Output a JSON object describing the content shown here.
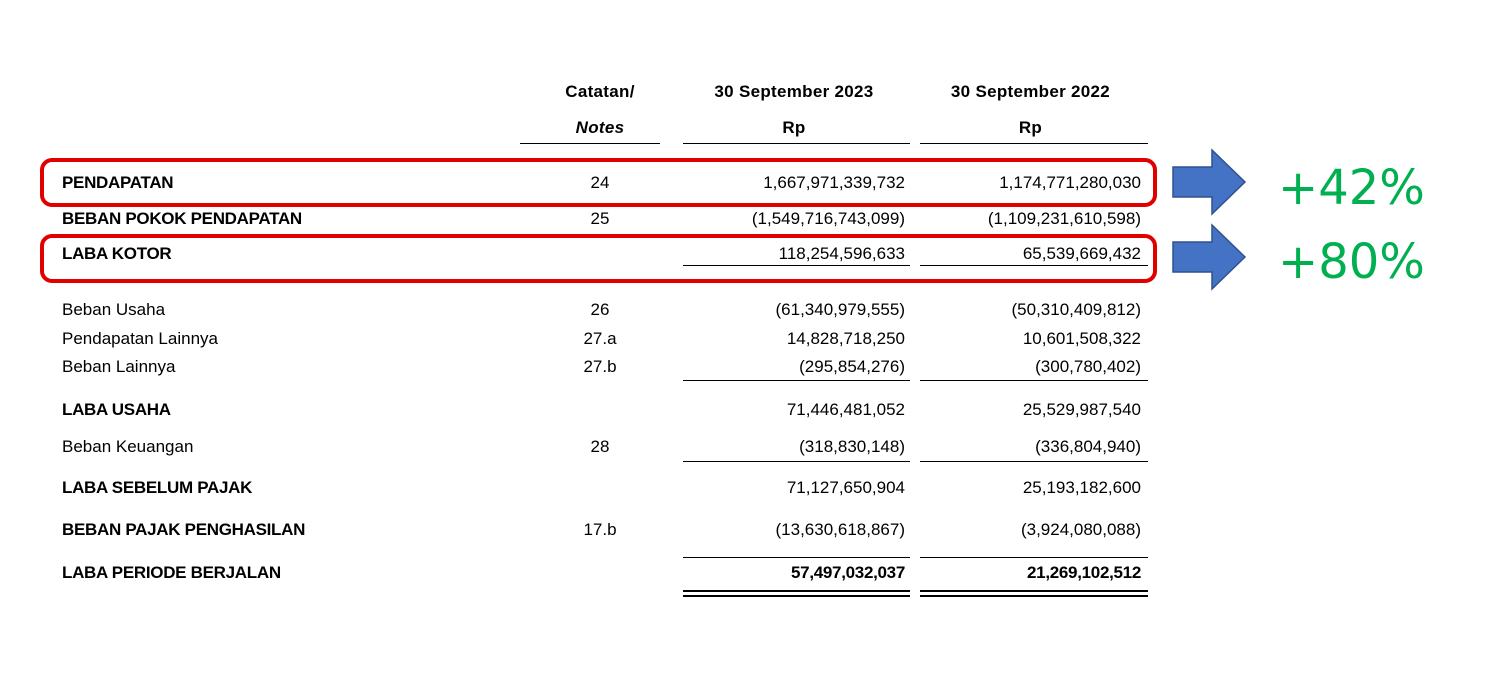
{
  "header": {
    "notes_label": "Catatan/",
    "notes_label_en": "Notes",
    "col_2023": "30 September 2023",
    "col_2022": "30 September 2022",
    "currency_2023": "Rp",
    "currency_2022": "Rp"
  },
  "table": {
    "rows": [
      [
        "PENDAPATAN",
        "24",
        "1,667,971,339,732",
        "1,174,771,280,030"
      ],
      [
        "BEBAN POKOK PENDAPATAN",
        "25",
        "(1,549,716,743,099)",
        "(1,109,231,610,598)"
      ],
      [
        "LABA KOTOR",
        "",
        "118,254,596,633",
        "65,539,669,432"
      ],
      [
        "Beban Usaha",
        "26",
        "(61,340,979,555)",
        "(50,310,409,812)"
      ],
      [
        "Pendapatan Lainnya",
        "27.a",
        "14,828,718,250",
        "10,601,508,322"
      ],
      [
        "Beban Lainnya",
        "27.b",
        "(295,854,276)",
        "(300,780,402)"
      ],
      [
        "LABA USAHA",
        "",
        "71,446,481,052",
        "25,529,987,540"
      ],
      [
        "Beban Keuangan",
        "28",
        "(318,830,148)",
        "(336,804,940)"
      ],
      [
        "LABA SEBELUM PAJAK",
        "",
        "71,127,650,904",
        "25,193,182,600"
      ],
      [
        "BEBAN PAJAK PENGHASILAN",
        "17.b",
        "(13,630,618,867)",
        "(3,924,080,088)"
      ],
      [
        "LABA PERIODE BERJALAN",
        "",
        "57,497,032,037",
        "21,269,102,512"
      ]
    ]
  },
  "annotations": [
    "+42%",
    "+80%"
  ]
}
